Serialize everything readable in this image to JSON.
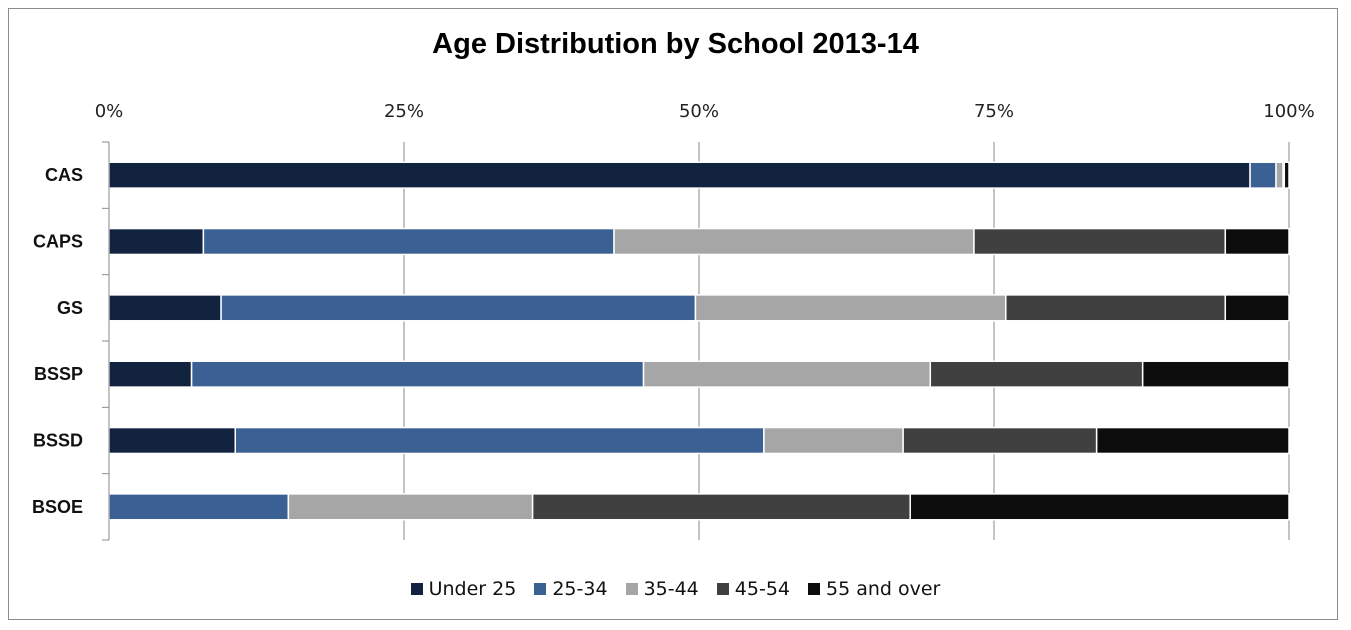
{
  "chart_data": {
    "type": "bar",
    "orientation": "horizontal",
    "stacked": "percent",
    "title": "Age Distribution by School 2013-14",
    "categories": [
      "CAS",
      "CAPS",
      "GS",
      "BSSP",
      "BSSD",
      "BSOE"
    ],
    "xlim": [
      0,
      100
    ],
    "xticks": [
      "0%",
      "25%",
      "50%",
      "75%",
      "100%"
    ],
    "grid": true,
    "legend_position": "bottom",
    "series": [
      {
        "name": "Under 25",
        "color": "#12233f",
        "values": [
          96.7,
          8.0,
          9.5,
          7.0,
          10.7,
          0.0
        ]
      },
      {
        "name": "25-34",
        "color": "#3a6094",
        "values": [
          2.2,
          34.8,
          40.2,
          38.3,
          44.8,
          15.2
        ]
      },
      {
        "name": "35-44",
        "color": "#a6a6a6",
        "values": [
          0.6,
          30.5,
          26.3,
          24.3,
          11.8,
          20.7
        ]
      },
      {
        "name": "45-54",
        "color": "#404040",
        "values": [
          0.1,
          21.3,
          18.6,
          18.0,
          16.4,
          32.0
        ]
      },
      {
        "name": "55 and over",
        "color": "#0d0d0d",
        "values": [
          0.4,
          5.4,
          5.4,
          12.4,
          16.3,
          32.1
        ]
      }
    ]
  }
}
